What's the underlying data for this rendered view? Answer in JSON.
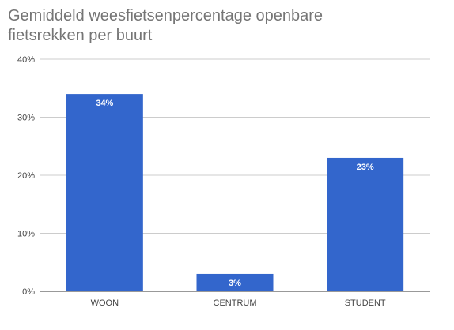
{
  "chart_data": {
    "type": "bar",
    "title": "Gemiddeld weesfietsenpercentage openbare fietsrekken per buurt",
    "xlabel": "",
    "ylabel": "",
    "categories": [
      "WOON",
      "CENTRUM",
      "STUDENT"
    ],
    "values": [
      34,
      3,
      23
    ],
    "data_labels": [
      "34%",
      "3%",
      "23%"
    ],
    "ylim": [
      0,
      40
    ],
    "yticks": [
      0,
      10,
      20,
      30,
      40
    ],
    "ytick_labels": [
      "0%",
      "10%",
      "20%",
      "30%",
      "40%"
    ],
    "grid": true,
    "legend": "none",
    "bar_color": "#3366cc",
    "grid_color": "#cccccc",
    "baseline_color": "#333333"
  }
}
